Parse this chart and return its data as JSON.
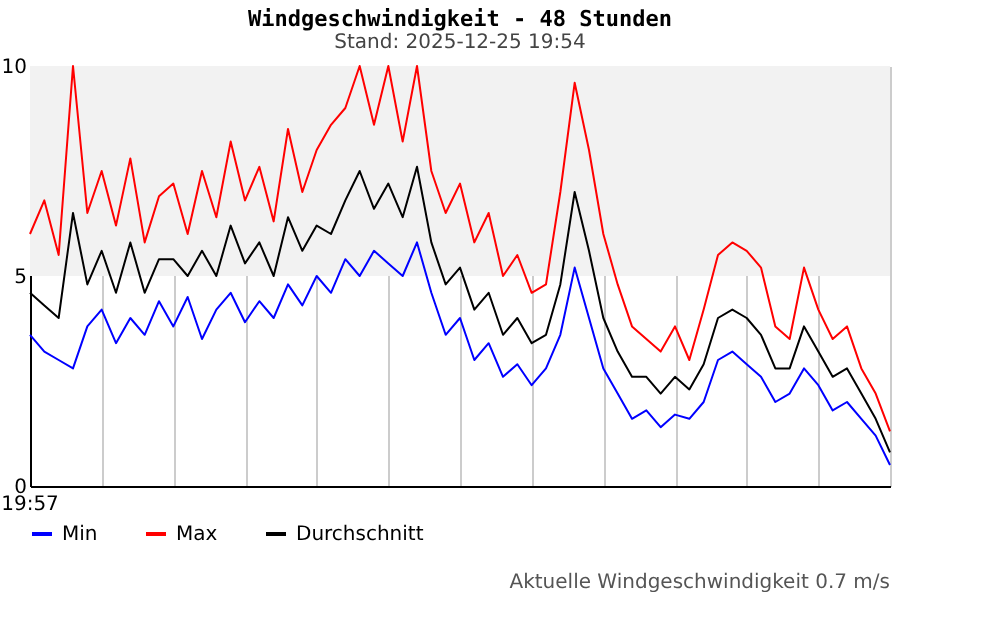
{
  "chart_data": {
    "type": "line",
    "title": "Windgeschwindigkeit - 48 Stunden",
    "subtitle": "Stand: 2025-12-25 19:54",
    "categories": [
      null,
      null,
      null,
      null,
      null,
      null,
      null,
      null,
      null,
      null,
      null,
      null,
      null,
      null,
      null,
      null,
      null,
      null,
      null,
      null,
      null,
      null,
      null,
      null,
      null,
      null,
      null,
      null,
      null,
      null,
      null,
      null,
      null,
      null,
      null,
      null,
      null,
      null,
      null,
      null,
      null,
      null,
      null,
      null,
      null,
      null,
      null,
      null,
      null,
      null,
      null,
      null,
      null,
      null,
      null,
      null,
      null,
      null,
      null,
      null,
      null
    ],
    "series": [
      {
        "name": "Min",
        "color": "#0000ff",
        "values": [
          3.6,
          3.2,
          3.0,
          2.8,
          3.8,
          4.2,
          3.4,
          4.0,
          3.6,
          4.4,
          3.8,
          4.5,
          3.5,
          4.2,
          4.6,
          3.9,
          4.4,
          4.0,
          4.8,
          4.3,
          5.0,
          4.6,
          5.4,
          5.0,
          5.6,
          5.3,
          5.0,
          5.8,
          4.6,
          3.6,
          4.0,
          3.0,
          3.4,
          2.6,
          2.9,
          2.4,
          2.8,
          3.6,
          5.2,
          4.0,
          2.8,
          2.2,
          1.6,
          1.8,
          1.4,
          1.7,
          1.6,
          2.0,
          3.0,
          3.2,
          2.9,
          2.6,
          2.0,
          2.2,
          2.8,
          2.4,
          1.8,
          2.0,
          1.6,
          1.2,
          0.5
        ]
      },
      {
        "name": "Max",
        "color": "#ff0000",
        "values": [
          6.0,
          6.8,
          5.5,
          10.0,
          6.5,
          7.5,
          6.2,
          7.8,
          5.8,
          6.9,
          7.2,
          6.0,
          7.5,
          6.4,
          8.2,
          6.8,
          7.6,
          6.3,
          8.5,
          7.0,
          8.0,
          8.6,
          9.0,
          10.0,
          8.6,
          10.0,
          8.2,
          10.0,
          7.5,
          6.5,
          7.2,
          5.8,
          6.5,
          5.0,
          5.5,
          4.6,
          4.8,
          7.0,
          9.6,
          8.0,
          6.0,
          4.8,
          3.8,
          3.5,
          3.2,
          3.8,
          3.0,
          4.2,
          5.5,
          5.8,
          5.6,
          5.2,
          3.8,
          3.5,
          5.2,
          4.2,
          3.5,
          3.8,
          2.8,
          2.2,
          1.3
        ]
      },
      {
        "name": "Durchschnitt",
        "color": "#000000",
        "values": [
          4.6,
          4.3,
          4.0,
          6.5,
          4.8,
          5.6,
          4.6,
          5.8,
          4.6,
          5.4,
          5.4,
          5.0,
          5.6,
          5.0,
          6.2,
          5.3,
          5.8,
          5.0,
          6.4,
          5.6,
          6.2,
          6.0,
          6.8,
          7.5,
          6.6,
          7.2,
          6.4,
          7.6,
          5.8,
          4.8,
          5.2,
          4.2,
          4.6,
          3.6,
          4.0,
          3.4,
          3.6,
          4.8,
          7.0,
          5.6,
          4.0,
          3.2,
          2.6,
          2.6,
          2.2,
          2.6,
          2.3,
          2.9,
          4.0,
          4.2,
          4.0,
          3.6,
          2.8,
          2.8,
          3.8,
          3.2,
          2.6,
          2.8,
          2.2,
          1.6,
          0.8
        ]
      }
    ],
    "ylim": [
      0,
      10
    ],
    "yticks": [
      0,
      5,
      10
    ],
    "bands": [
      {
        "axis": "y",
        "from": 5,
        "to": 10,
        "color": "#f2f2f2"
      }
    ],
    "grid": "x",
    "legend": "bottom",
    "marker": "none",
    "line_style": "solid",
    "tick_labels": "y",
    "annotations": [
      "19:57",
      "Aktuelle Windgeschwindigkeit 0.7 m/s"
    ]
  }
}
